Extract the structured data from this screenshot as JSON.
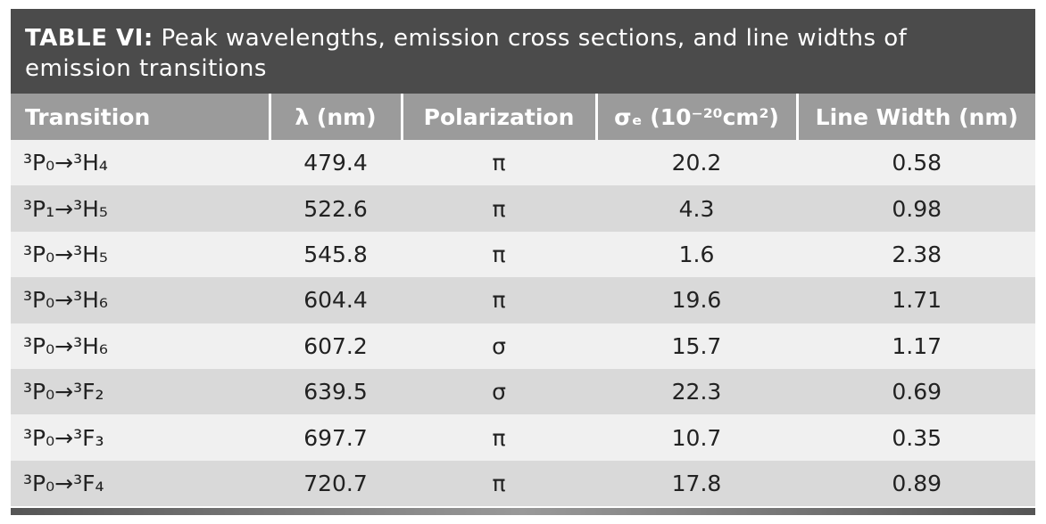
{
  "table": {
    "label": "TABLE VI:",
    "title": "Peak wavelengths, emission cross sections, and line widths of emission transitions",
    "columns": [
      "Transition",
      "λ (nm)",
      "Polarization",
      "σₑ (10⁻²⁰cm²)",
      "Line Width (nm)"
    ],
    "rows": [
      [
        "³P₀→³H₄",
        "479.4",
        "π",
        "20.2",
        "0.58"
      ],
      [
        "³P₁→³H₅",
        "522.6",
        "π",
        "4.3",
        "0.98"
      ],
      [
        "³P₀→³H₅",
        "545.8",
        "π",
        "1.6",
        "2.38"
      ],
      [
        "³P₀→³H₆",
        "604.4",
        "π",
        "19.6",
        "1.71"
      ],
      [
        "³P₀→³H₆",
        "607.2",
        "σ",
        "15.7",
        "1.17"
      ],
      [
        "³P₀→³F₂",
        "639.5",
        "σ",
        "22.3",
        "0.69"
      ],
      [
        "³P₀→³F₃",
        "697.7",
        "π",
        "10.7",
        "0.35"
      ],
      [
        "³P₀→³F₄",
        "720.7",
        "π",
        "17.8",
        "0.89"
      ]
    ]
  }
}
